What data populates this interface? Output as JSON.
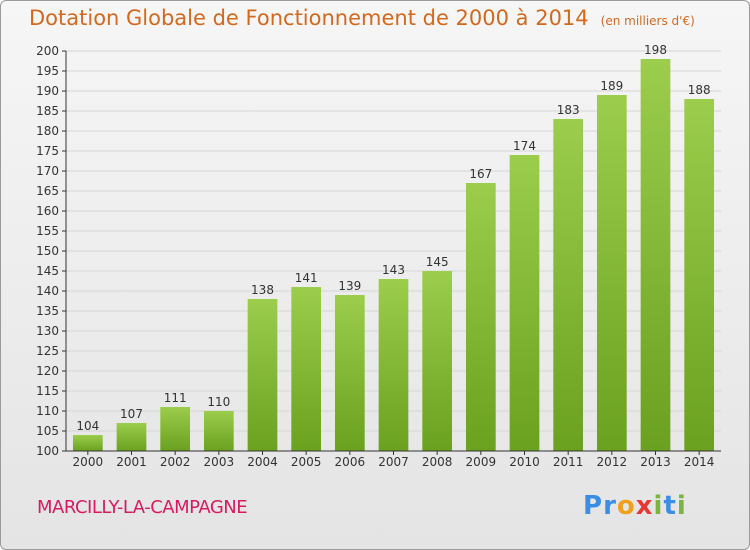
{
  "header": {
    "title": "Dotation Globale de Fonctionnement de 2000 à 2014",
    "unit": "(en milliers d'€)"
  },
  "footer": {
    "commune": "MARCILLY-LA-CAMPAGNE",
    "logo": {
      "letters": [
        "P",
        "r",
        "o",
        "x",
        "i",
        "t",
        "i"
      ],
      "colors": [
        "#3a8ee6",
        "#3a8ee6",
        "#f0a01a",
        "#e53935",
        "#7cb342",
        "#3a8ee6",
        "#7cb342"
      ]
    }
  },
  "chart_data": {
    "type": "bar",
    "title": "Dotation Globale de Fonctionnement de 2000 à 2014",
    "subtitle": "(en milliers d'€)",
    "categories": [
      "2000",
      "2001",
      "2002",
      "2003",
      "2004",
      "2005",
      "2006",
      "2007",
      "2008",
      "2009",
      "2010",
      "2011",
      "2012",
      "2013",
      "2014"
    ],
    "values": [
      104,
      107,
      111,
      110,
      138,
      141,
      139,
      143,
      145,
      167,
      174,
      183,
      189,
      198,
      188
    ],
    "ylim": [
      100,
      200
    ],
    "yticks": [
      100,
      105,
      110,
      115,
      120,
      125,
      130,
      135,
      140,
      145,
      150,
      155,
      160,
      165,
      170,
      175,
      180,
      185,
      190,
      195,
      200
    ],
    "grid": true,
    "bar_color_top": "#9ccd4c",
    "bar_color_bottom": "#6aa11f",
    "label_color": "#333333",
    "axis_color": "#333333"
  }
}
